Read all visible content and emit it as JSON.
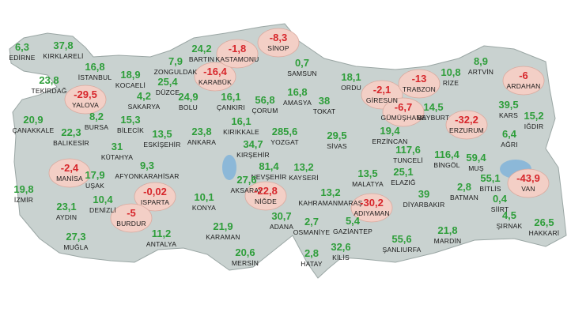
{
  "provinces": [
    {
      "name": "EDİRNE",
      "value": "6,3"
    },
    {
      "name": "KIRKLARELİ",
      "value": "37,8"
    },
    {
      "name": "İSTANBUL",
      "value": "16,8"
    },
    {
      "name": "TEKİRDAĞ",
      "value": "23,8"
    },
    {
      "name": "YALOVA",
      "value": "-29,5"
    },
    {
      "name": "KOCAELİ",
      "value": "18,9"
    },
    {
      "name": "SAKARYA",
      "value": "4,2"
    },
    {
      "name": "ZONGULDAK",
      "value": "7,9"
    },
    {
      "name": "DÜZCE",
      "value": "25,4"
    },
    {
      "name": "BARTIN",
      "value": "24,2"
    },
    {
      "name": "KARABÜK",
      "value": "-16,4"
    },
    {
      "name": "KASTAMONU",
      "value": "-1,8"
    },
    {
      "name": "SİNOP",
      "value": "-8,3"
    },
    {
      "name": "BOLU",
      "value": "24,9"
    },
    {
      "name": "ÇANKIRI",
      "value": "16,1"
    },
    {
      "name": "SAMSUN",
      "value": "0,7"
    },
    {
      "name": "ÇORUM",
      "value": "56,8"
    },
    {
      "name": "AMASYA",
      "value": "16,8"
    },
    {
      "name": "TOKAT",
      "value": "38"
    },
    {
      "name": "ORDU",
      "value": "18,1"
    },
    {
      "name": "GİRESUN",
      "value": "-2,1"
    },
    {
      "name": "TRABZON",
      "value": "-13"
    },
    {
      "name": "RİZE",
      "value": "10,8"
    },
    {
      "name": "ARTVİN",
      "value": "8,9"
    },
    {
      "name": "ARDAHAN",
      "value": "-6"
    },
    {
      "name": "GÜMÜŞHANE",
      "value": "-6,7"
    },
    {
      "name": "BAYBURT",
      "value": "14,5"
    },
    {
      "name": "ERZURUM",
      "value": "-32,2"
    },
    {
      "name": "KARS",
      "value": "39,5"
    },
    {
      "name": "IĞDIR",
      "value": "15,2"
    },
    {
      "name": "AĞRI",
      "value": "6,4"
    },
    {
      "name": "ÇANAKKALE",
      "value": "20,9"
    },
    {
      "name": "BURSA",
      "value": "8,2"
    },
    {
      "name": "BİLECİK",
      "value": "15,3"
    },
    {
      "name": "BALIKESİR",
      "value": "22,3"
    },
    {
      "name": "KÜTAHYA",
      "value": "31"
    },
    {
      "name": "ESKİŞEHİR",
      "value": "13,5"
    },
    {
      "name": "ANKARA",
      "value": "23,8"
    },
    {
      "name": "KIRIKKALE",
      "value": "16,1"
    },
    {
      "name": "YOZGAT",
      "value": "285,6"
    },
    {
      "name": "SİVAS",
      "value": "29,5"
    },
    {
      "name": "ERZİNCAN",
      "value": "19,4"
    },
    {
      "name": "KIRŞEHİR",
      "value": "34,7"
    },
    {
      "name": "TUNCELİ",
      "value": "117,6"
    },
    {
      "name": "BİNGÖL",
      "value": "116,4"
    },
    {
      "name": "MUŞ",
      "value": "59,4"
    },
    {
      "name": "MANİSA",
      "value": "-2,4"
    },
    {
      "name": "AFYONKARAHİSAR",
      "value": "9,3"
    },
    {
      "name": "UŞAK",
      "value": "17,9"
    },
    {
      "name": "NEVŞEHİR",
      "value": "81,4"
    },
    {
      "name": "KAYSERİ",
      "value": "13,2"
    },
    {
      "name": "AKSARAY",
      "value": "27,6"
    },
    {
      "name": "BİTLİS",
      "value": "55,1"
    },
    {
      "name": "VAN",
      "value": "-43,9"
    },
    {
      "name": "İZMİR",
      "value": "19,8"
    },
    {
      "name": "DENİZLİ",
      "value": "10,4"
    },
    {
      "name": "ISPARTA",
      "value": "-0,02"
    },
    {
      "name": "KONYA",
      "value": "10,1"
    },
    {
      "name": "NİĞDE",
      "value": "-22,8"
    },
    {
      "name": "MALATYA",
      "value": "13,5"
    },
    {
      "name": "ELAZIĞ",
      "value": "25,1"
    },
    {
      "name": "KAHRAMANMARAŞ",
      "value": "13,2"
    },
    {
      "name": "ADIYAMAN",
      "value": "-30,2"
    },
    {
      "name": "DİYARBAKIR",
      "value": "39"
    },
    {
      "name": "BATMAN",
      "value": "2,8"
    },
    {
      "name": "SİİRT",
      "value": "0,4"
    },
    {
      "name": "AYDIN",
      "value": "23,1"
    },
    {
      "name": "BURDUR",
      "value": "-5"
    },
    {
      "name": "ADANA",
      "value": "30,7"
    },
    {
      "name": "OSMANİYE",
      "value": "2,7"
    },
    {
      "name": "GAZİANTEP",
      "value": "5,4"
    },
    {
      "name": "ŞIRNAK",
      "value": "4,5"
    },
    {
      "name": "HAKKARİ",
      "value": "26,5"
    },
    {
      "name": "MUĞLA",
      "value": "27,3"
    },
    {
      "name": "ANTALYA",
      "value": "11,2"
    },
    {
      "name": "KARAMAN",
      "value": "21,9"
    },
    {
      "name": "MARDİN",
      "value": "21,8"
    },
    {
      "name": "ŞANLIURFA",
      "value": "55,6"
    },
    {
      "name": "KİLİS",
      "value": "32,6"
    },
    {
      "name": "MERSİN",
      "value": "20,6"
    },
    {
      "name": "HATAY",
      "value": "2,8"
    }
  ]
}
